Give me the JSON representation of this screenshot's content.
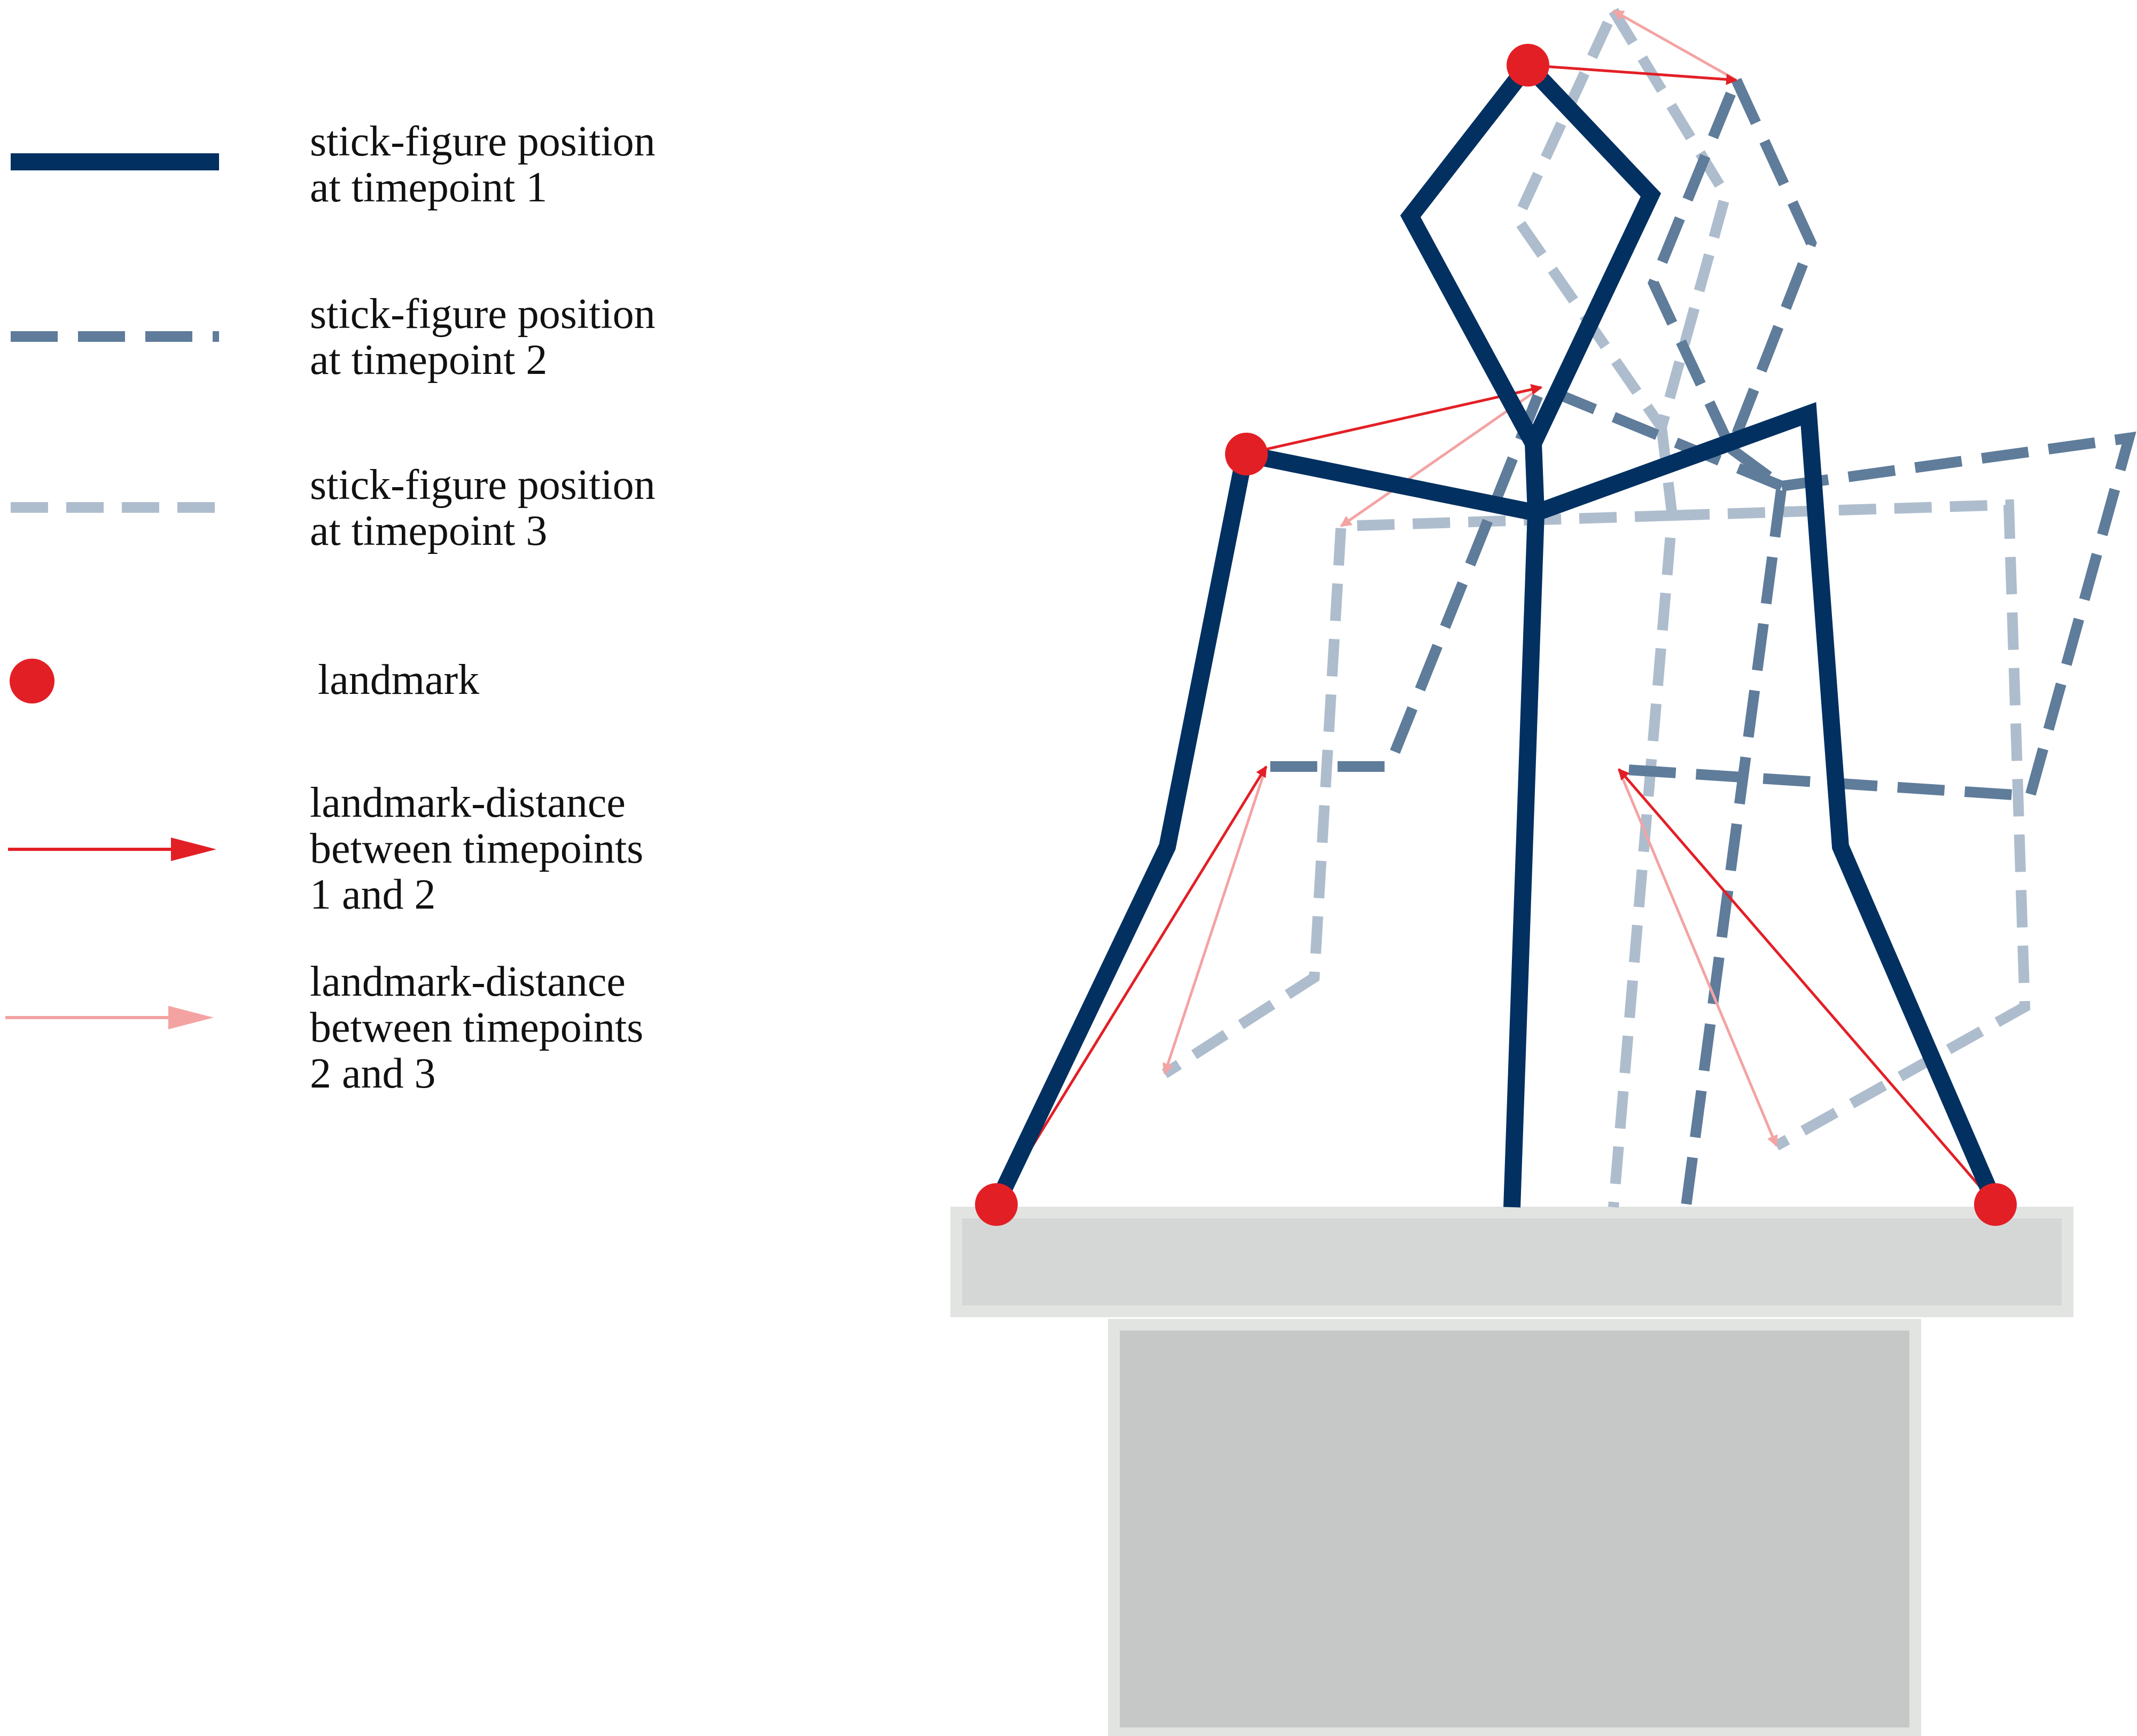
{
  "legend": [
    {
      "id": "timepoint1",
      "text": "stick-figure position\nat timepoint 1"
    },
    {
      "id": "timepoint2",
      "text": "stick-figure position\nat timepoint 2"
    },
    {
      "id": "timepoint3",
      "text": "stick-figure position\nat timepoint 3"
    },
    {
      "id": "landmark",
      "text": "landmark"
    },
    {
      "id": "distance12",
      "text": "landmark-distance\nbetween  timepoints\n1 and 2"
    },
    {
      "id": "distance23",
      "text": "landmark-distance\nbetween  timepoints\n2 and 3"
    }
  ],
  "colors": {
    "timepoint1": "#023061",
    "timepoint2": "#5f7c9a",
    "timepoint3": "#aebdcd",
    "landmark": "#e31f26",
    "distance12": "#e31f26",
    "distance23": "#f4a3a3",
    "platform_top": "#d5d7d6",
    "platform_base": "#c6c8c7",
    "platform_border": "#e2e4e1"
  }
}
